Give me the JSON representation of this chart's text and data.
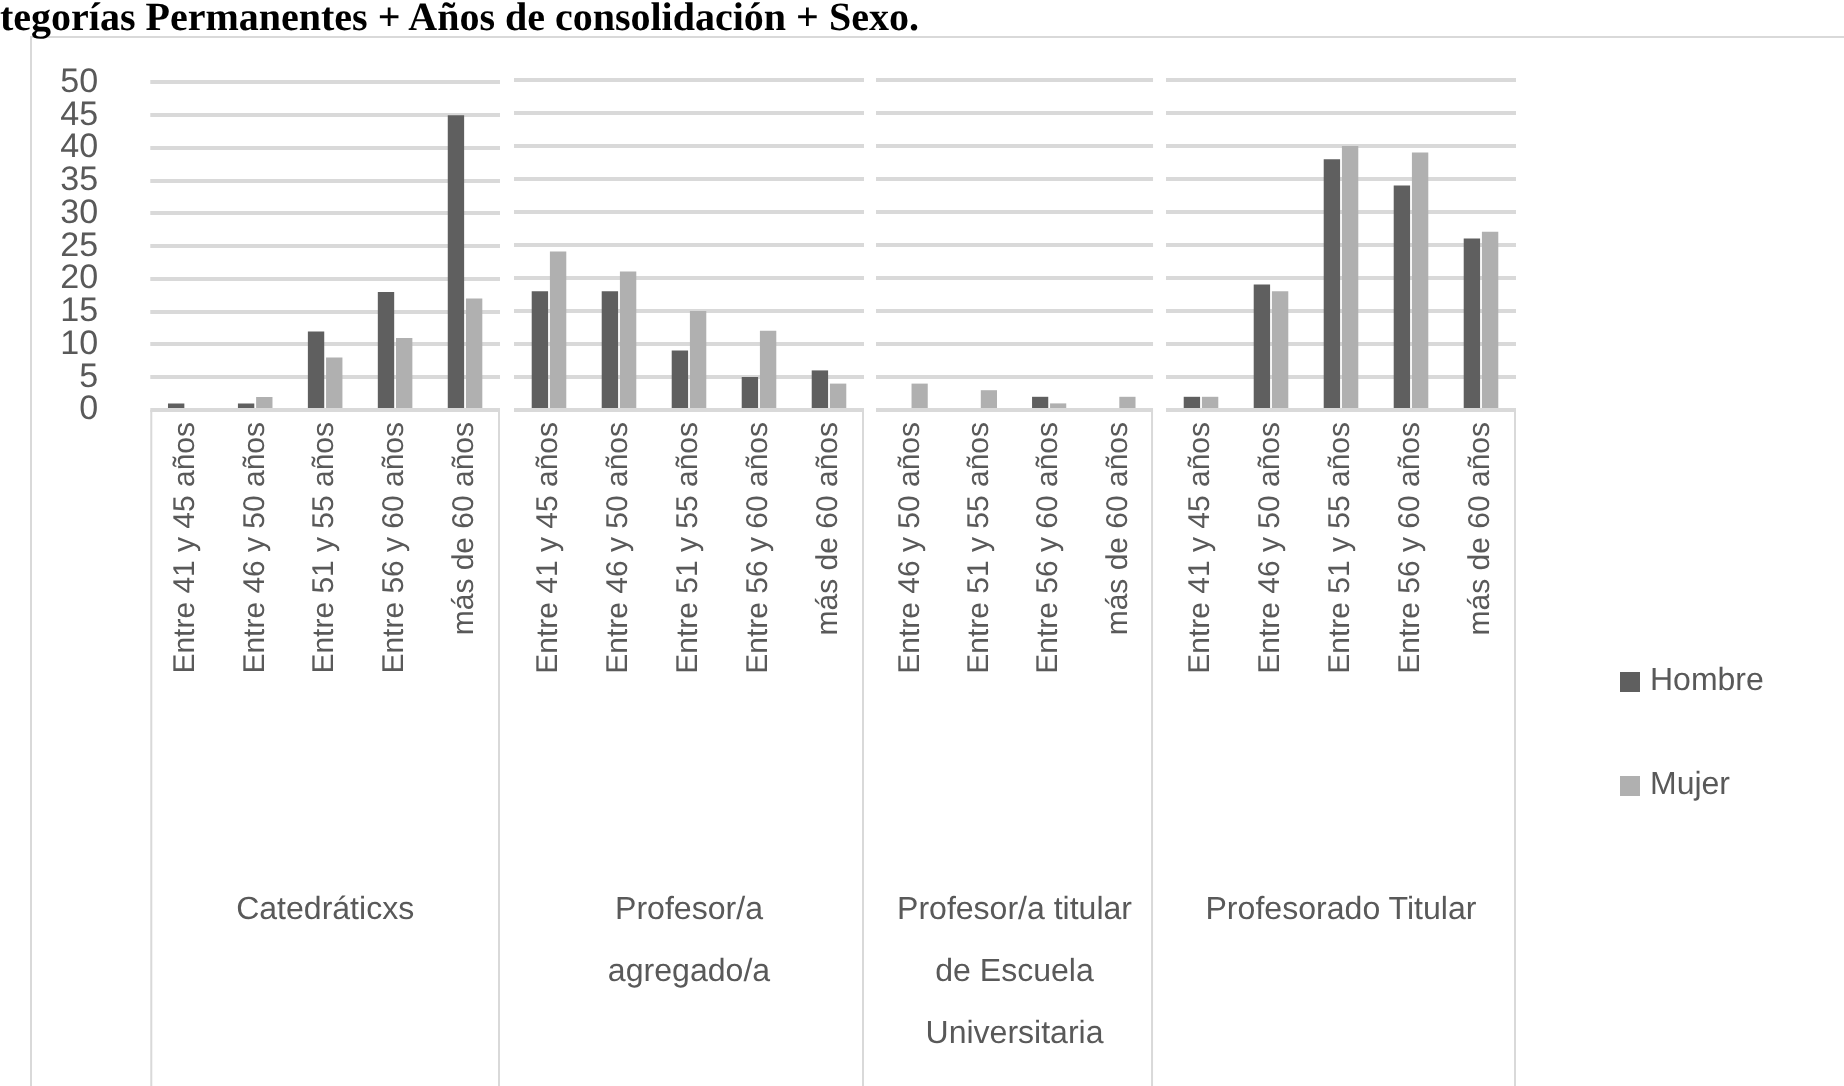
{
  "chart_data": [
    {
      "type": "bar",
      "title": "tegorías Permanentes + Años de consolidación + Sexo.",
      "xlabel": "Catedráticxs",
      "categories": [
        "Entre 41 y 45 años",
        "Entre 46 y 50 años",
        "Entre 51 y 55 años",
        "Entre 56 y 60 años",
        "más de 60 años"
      ],
      "series": [
        {
          "color": "#5f5f5f",
          "values": [
            1,
            1,
            12,
            18,
            45
          ]
        },
        {
          "color": "#b0b0b0",
          "values": [
            0,
            2,
            8,
            11,
            17
          ]
        }
      ],
      "ylim": [
        0,
        50
      ],
      "yticks": [
        0,
        5,
        10,
        15,
        20,
        25,
        30,
        35,
        40,
        45,
        50
      ],
      "grid": "y"
    },
    {
      "type": "bar",
      "xlabel": "Profesor/a agregado/a",
      "categories": [
        "Entre 41 y 45 años",
        "Entre 46 y 50 años",
        "Entre 51 y 55 años",
        "Entre 56 y 60 años",
        "más de 60 años"
      ],
      "series": [
        {
          "color": "#5f5f5f",
          "values": [
            18,
            18,
            9,
            5,
            6
          ]
        },
        {
          "color": "#b0b0b0",
          "values": [
            24,
            21,
            15,
            12,
            4
          ]
        }
      ],
      "ylim": [
        0,
        50
      ],
      "yticks": [
        0,
        5,
        10,
        15,
        20,
        25,
        30,
        35,
        40,
        45,
        50
      ],
      "grid": "y",
      "tick_labels": "x"
    },
    {
      "type": "bar",
      "xlabel": "Profesor/a titular de Escuela Universitaria",
      "categories": [
        "Entre 46 y 50 años",
        "Entre 51 y 55 años",
        "Entre 56 y 60 años",
        "más de 60 años"
      ],
      "series": [
        {
          "color": "#5f5f5f",
          "values": [
            0,
            0,
            2,
            0
          ]
        },
        {
          "color": "#b0b0b0",
          "values": [
            4,
            3,
            1,
            2
          ]
        }
      ],
      "ylim": [
        0,
        50
      ],
      "yticks": [
        0,
        5,
        10,
        15,
        20,
        25,
        30,
        35,
        40,
        45,
        50
      ],
      "grid": "y",
      "tick_labels": "x"
    },
    {
      "type": "bar",
      "xlabel": "Profesorado Titular",
      "categories": [
        "Entre 41 y 45 años",
        "Entre 46 y 50 años",
        "Entre 51 y 55 años",
        "Entre 56 y 60 años",
        "más de 60 años"
      ],
      "series": [
        {
          "name": "Hombre",
          "color": "#5f5f5f",
          "values": [
            2,
            19,
            38,
            34,
            26
          ]
        },
        {
          "name": "Mujer",
          "color": "#b0b0b0",
          "values": [
            2,
            18,
            40,
            39,
            27
          ]
        }
      ],
      "ylim": [
        0,
        50
      ],
      "yticks": [
        0,
        5,
        10,
        15,
        20,
        25,
        30,
        35,
        40,
        45,
        50
      ],
      "grid": "y",
      "tick_labels": "x",
      "legend": "right"
    }
  ]
}
